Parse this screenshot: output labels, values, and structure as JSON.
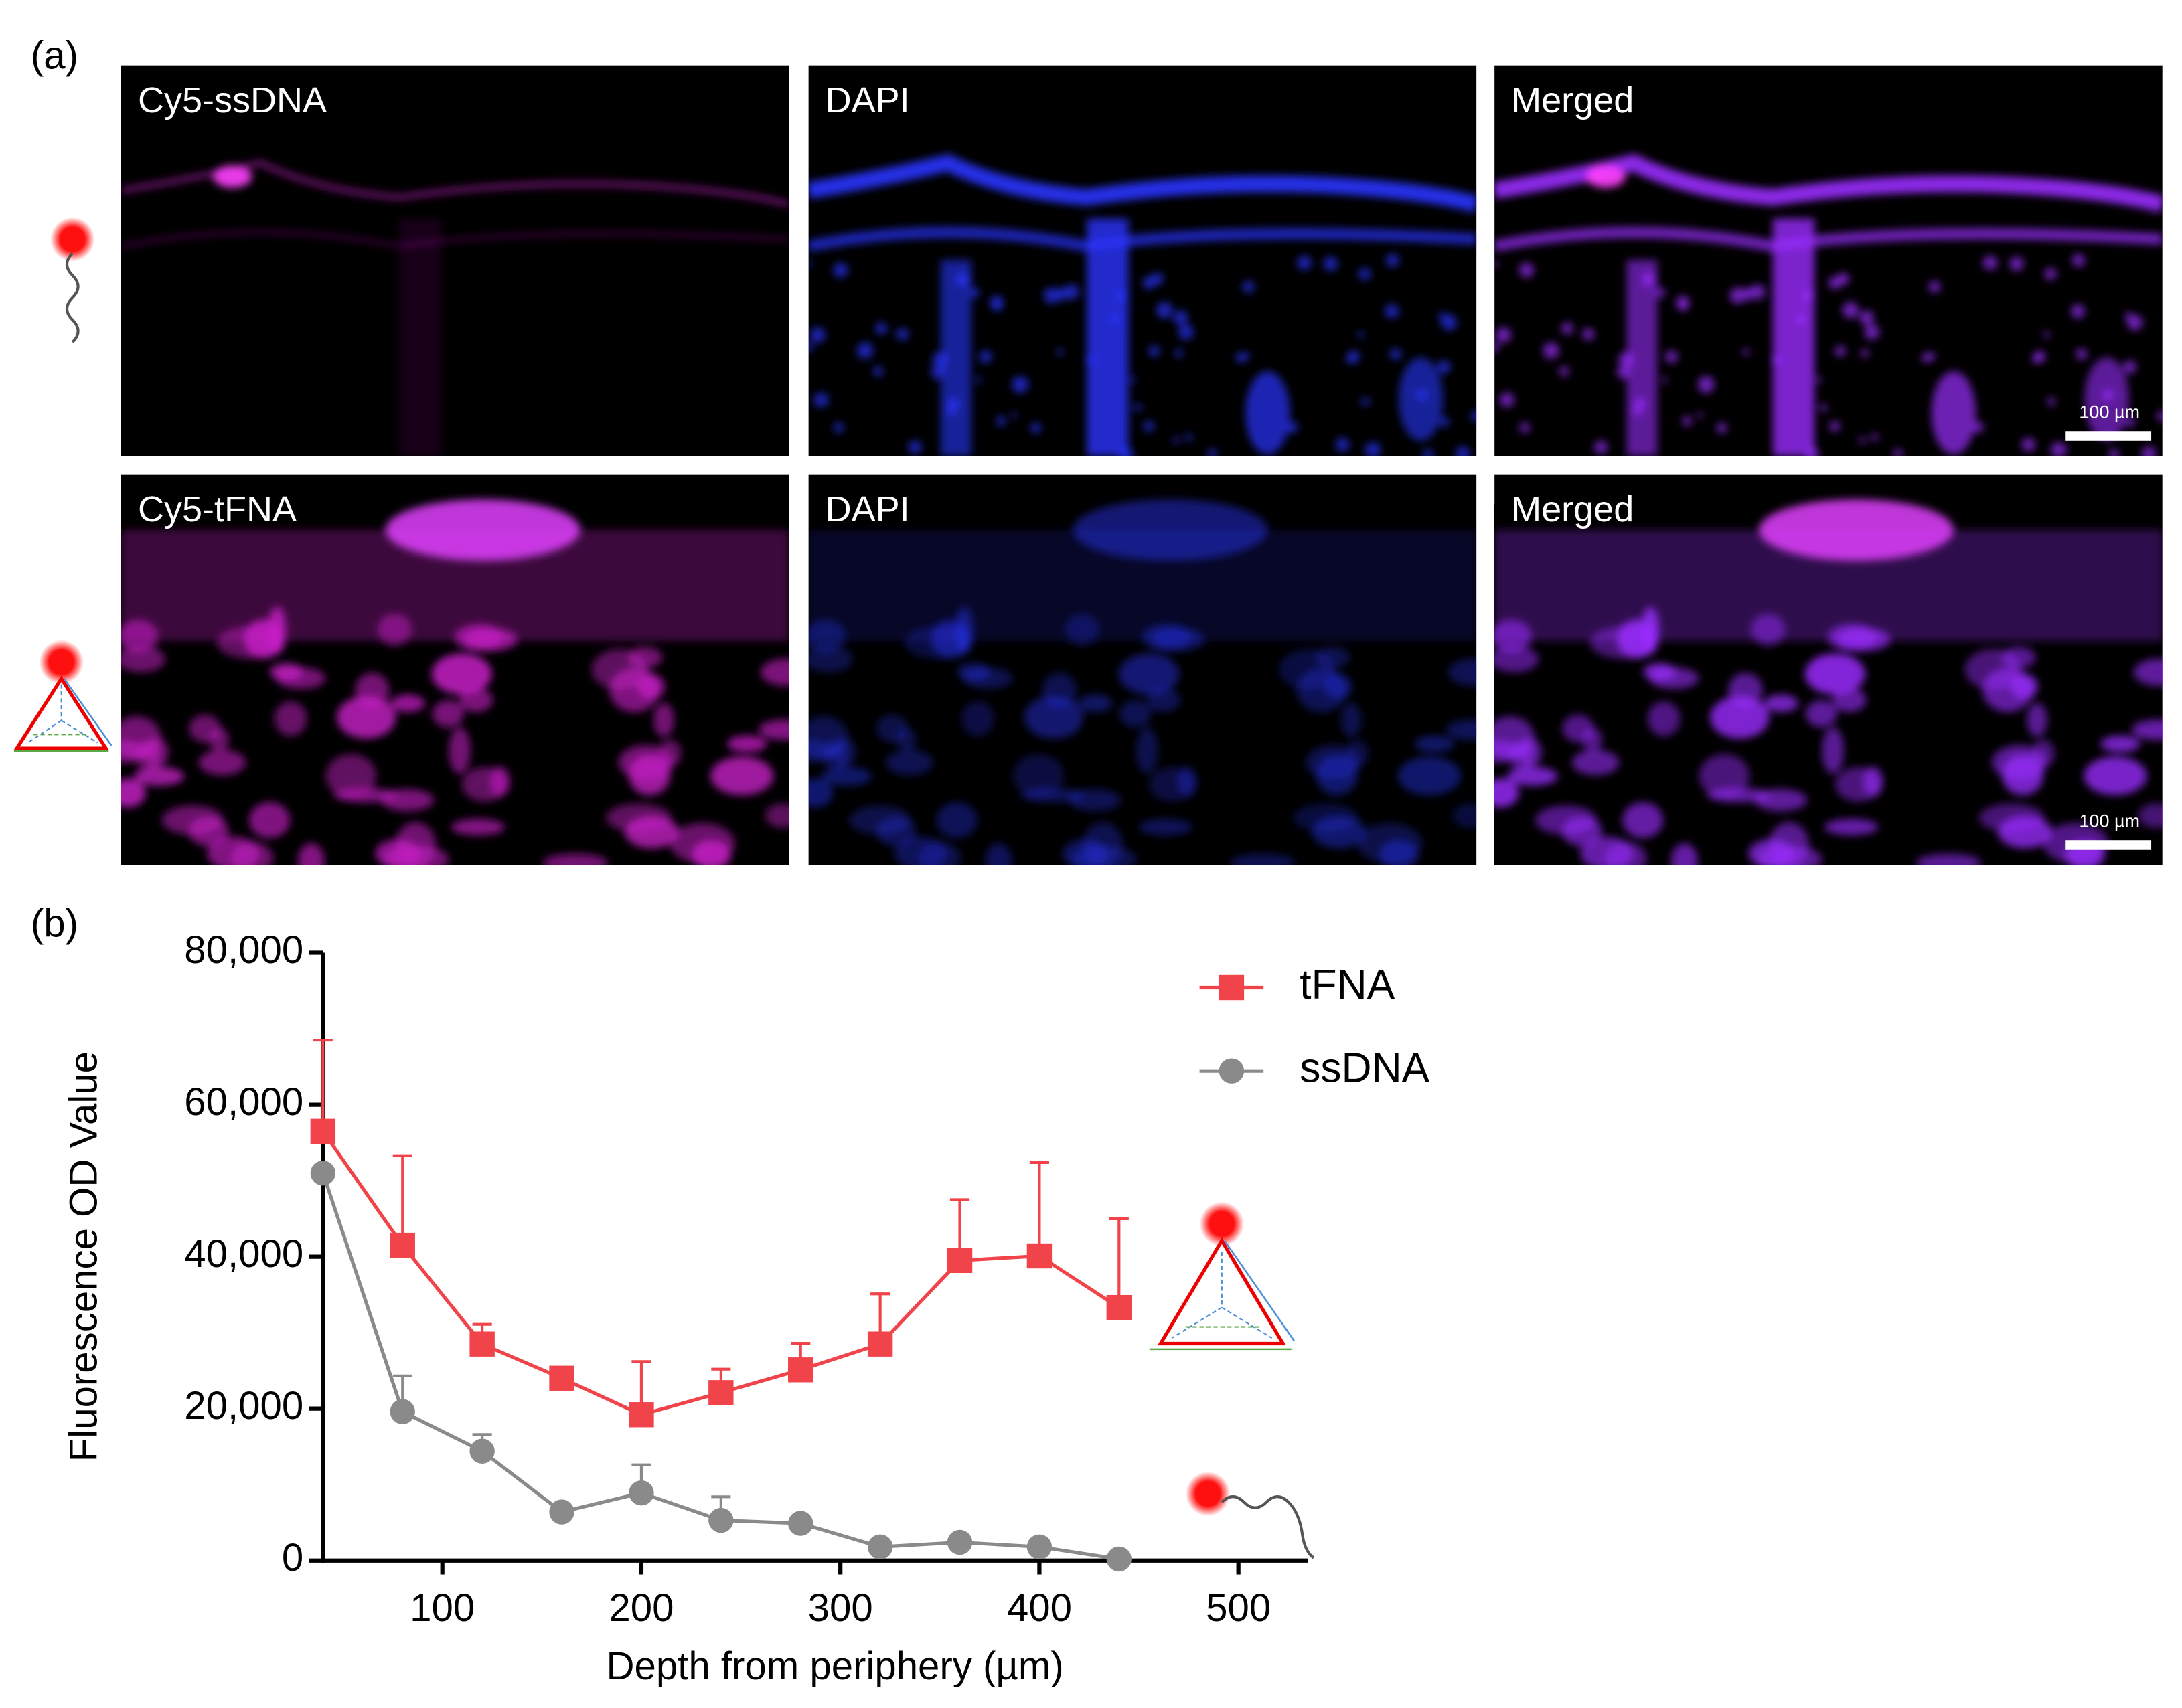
{
  "panel_a": {
    "label": "(a)",
    "rows": [
      [
        "Cy5-ssDNA",
        "DAPI",
        "Merged"
      ],
      [
        "Cy5-tFNA",
        "DAPI",
        "Merged"
      ]
    ],
    "scale_bar": "100 µm"
  },
  "chart_data": {
    "type": "line",
    "panel_label": "(b)",
    "x_label": "Depth from periphery (µm)",
    "y_label": "Fluorescence OD Value",
    "x": [
      40,
      80,
      120,
      160,
      200,
      240,
      280,
      320,
      360,
      400,
      440
    ],
    "series": [
      {
        "name": "tFNA",
        "color": "#f0444a",
        "marker": "square",
        "values": [
          56500,
          41500,
          28500,
          24000,
          19200,
          22100,
          25100,
          28500,
          39500,
          40100,
          33300
        ],
        "errors": [
          12000,
          11800,
          2600,
          0,
          7000,
          3100,
          3500,
          6600,
          8000,
          12300,
          11700
        ]
      },
      {
        "name": "ssDNA",
        "color": "#8a8a8a",
        "marker": "circle",
        "values": [
          51000,
          19600,
          14400,
          6400,
          8900,
          5300,
          4900,
          1800,
          2400,
          1800,
          200
        ],
        "errors": [
          0,
          4700,
          2200,
          0,
          3700,
          3100,
          0,
          0,
          0,
          0,
          0
        ]
      }
    ],
    "xlim": [
      40,
      535
    ],
    "xticks": [
      100,
      200,
      300,
      400,
      500
    ],
    "ylim": [
      0,
      80000
    ],
    "yticks": [
      0,
      {
        "value": 20000,
        "label": "20,000"
      },
      {
        "value": 40000,
        "label": "40,000"
      },
      {
        "value": 60000,
        "label": "60,000"
      },
      {
        "value": 80000,
        "label": "80,000"
      }
    ],
    "legend": "upper right"
  }
}
